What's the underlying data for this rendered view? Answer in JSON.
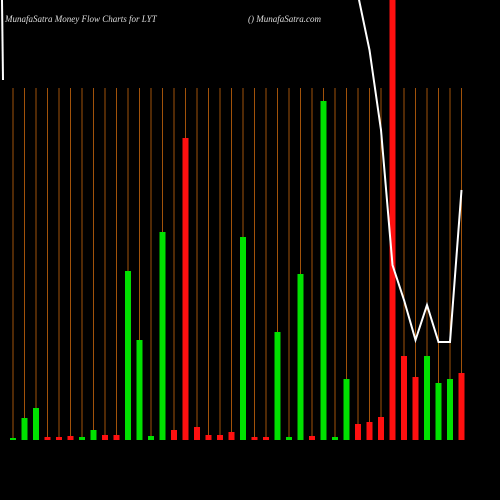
{
  "chart_data": {
    "type": "bar",
    "title": "MunafaSatra  Money Flow  Charts for LYT",
    "subtitle": "() MunafaSatra.com",
    "values": [
      2,
      22,
      32,
      3,
      3,
      4,
      3,
      10,
      5,
      5,
      169,
      100,
      4,
      208,
      10,
      302,
      13,
      5,
      5,
      8,
      203,
      3,
      3,
      108,
      3,
      166,
      4,
      339,
      3,
      61,
      16,
      18,
      23,
      440,
      84,
      63,
      84,
      57,
      61,
      67
    ],
    "colors": [
      "#00e000",
      "#00e000",
      "#00e000",
      "#ff1010",
      "#ff1010",
      "#ff1010",
      "#00e000",
      "#00e000",
      "#ff1010",
      "#ff1010",
      "#00e000",
      "#00e000",
      "#00e000",
      "#00e000",
      "#ff1010",
      "#ff1010",
      "#ff1010",
      "#ff1010",
      "#ff1010",
      "#ff1010",
      "#00e000",
      "#ff1010",
      "#ff1010",
      "#00e000",
      "#00e000",
      "#00e000",
      "#ff1010",
      "#00e000",
      "#00e000",
      "#00e000",
      "#ff1010",
      "#ff1010",
      "#ff1010",
      "#ff1010",
      "#ff1010",
      "#ff1010",
      "#00e000",
      "#00e000",
      "#00e000",
      "#ff1010"
    ],
    "line": {
      "color": "#ffffff",
      "values": [
        null,
        null,
        null,
        null,
        null,
        null,
        null,
        null,
        null,
        null,
        null,
        null,
        null,
        null,
        null,
        null,
        null,
        null,
        null,
        null,
        null,
        null,
        null,
        null,
        null,
        null,
        null,
        null,
        null,
        null,
        445,
        390,
        310,
        175,
        140,
        100,
        135,
        98,
        98,
        250
      ]
    },
    "ylim": [
      0,
      440
    ],
    "grid": true,
    "grid_color": "#a0520a",
    "background": "#000000"
  }
}
